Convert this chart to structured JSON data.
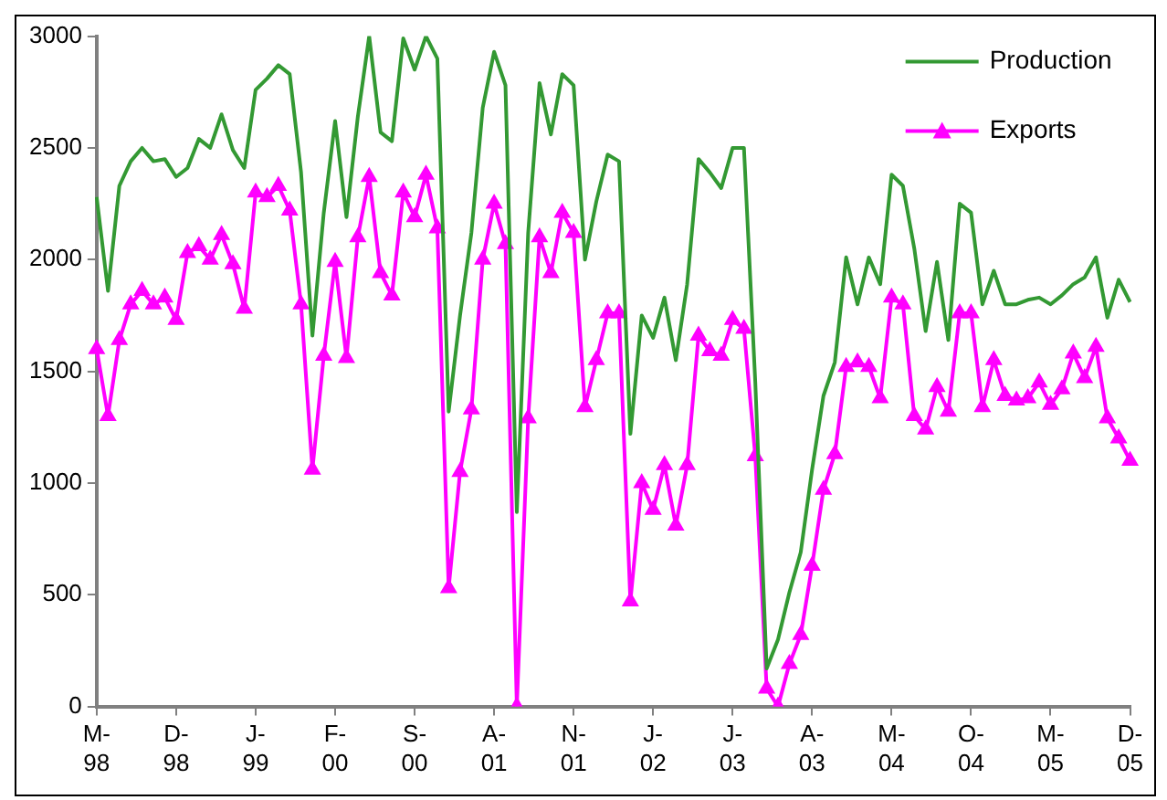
{
  "chart_data": {
    "type": "line",
    "categories": [
      "M-98",
      null,
      null,
      null,
      null,
      null,
      null,
      "D-98",
      null,
      null,
      null,
      null,
      null,
      null,
      "J-99",
      null,
      null,
      null,
      null,
      null,
      null,
      "F-00",
      null,
      null,
      null,
      null,
      null,
      null,
      "S-00",
      null,
      null,
      null,
      null,
      null,
      null,
      "A-01",
      null,
      null,
      null,
      null,
      null,
      null,
      "N-01",
      null,
      null,
      null,
      null,
      null,
      null,
      "J-02",
      null,
      null,
      null,
      null,
      null,
      null,
      "J-03",
      null,
      null,
      null,
      null,
      null,
      null,
      "A-03",
      null,
      null,
      null,
      null,
      null,
      null,
      "M-04",
      null,
      null,
      null,
      null,
      null,
      null,
      "O-04",
      null,
      null,
      null,
      null,
      null,
      null,
      "M-05",
      null,
      null,
      null,
      null,
      null,
      null,
      "D-05"
    ],
    "series": [
      {
        "name": "Production",
        "color": "#339933",
        "marker": "none",
        "values": [
          2280,
          1860,
          2330,
          2440,
          2500,
          2440,
          2450,
          2370,
          2410,
          2540,
          2500,
          2650,
          2490,
          2410,
          2760,
          2810,
          2870,
          2830,
          2390,
          1660,
          2210,
          2620,
          2190,
          2640,
          3000,
          2570,
          2530,
          2990,
          2850,
          3000,
          2900,
          1320,
          1750,
          2120,
          2680,
          2930,
          2780,
          870,
          2120,
          2790,
          2560,
          2830,
          2780,
          2000,
          2260,
          2470,
          2440,
          1220,
          1750,
          1650,
          1830,
          1550,
          1890,
          2450,
          2390,
          2320,
          2500,
          2500,
          1450,
          170,
          300,
          510,
          690,
          1060,
          1390,
          1540,
          2010,
          1800,
          2010,
          1890,
          2380,
          2330,
          2050,
          1680,
          1990,
          1640,
          2250,
          2210,
          1800,
          1950,
          1800,
          1800,
          1820,
          1830,
          1800,
          1840,
          1890,
          1920,
          2010,
          1740,
          1910,
          1810
        ]
      },
      {
        "name": "Exports",
        "color": "#ff00ff",
        "marker": "triangle",
        "values": [
          1600,
          1300,
          1640,
          1800,
          1860,
          1800,
          1830,
          1730,
          2030,
          2060,
          2000,
          2110,
          1980,
          1780,
          2300,
          2280,
          2330,
          2220,
          1800,
          1060,
          1570,
          1990,
          1560,
          2100,
          2370,
          1940,
          1840,
          2300,
          2190,
          2380,
          2140,
          530,
          1050,
          1330,
          2000,
          2250,
          2070,
          0,
          1290,
          2100,
          1940,
          2210,
          2120,
          1340,
          1550,
          1760,
          1760,
          470,
          1000,
          880,
          1080,
          810,
          1080,
          1660,
          1590,
          1570,
          1730,
          1690,
          1120,
          80,
          0,
          190,
          320,
          630,
          970,
          1130,
          1520,
          1540,
          1520,
          1380,
          1830,
          1800,
          1300,
          1240,
          1430,
          1320,
          1760,
          1760,
          1340,
          1550,
          1390,
          1370,
          1380,
          1450,
          1350,
          1420,
          1580,
          1470,
          1610,
          1290,
          1200,
          1100
        ]
      }
    ],
    "ylim": [
      0,
      3000
    ],
    "yticks": [
      0,
      500,
      1000,
      1500,
      2000,
      2500,
      3000
    ],
    "grid": false,
    "legend": "top right"
  }
}
